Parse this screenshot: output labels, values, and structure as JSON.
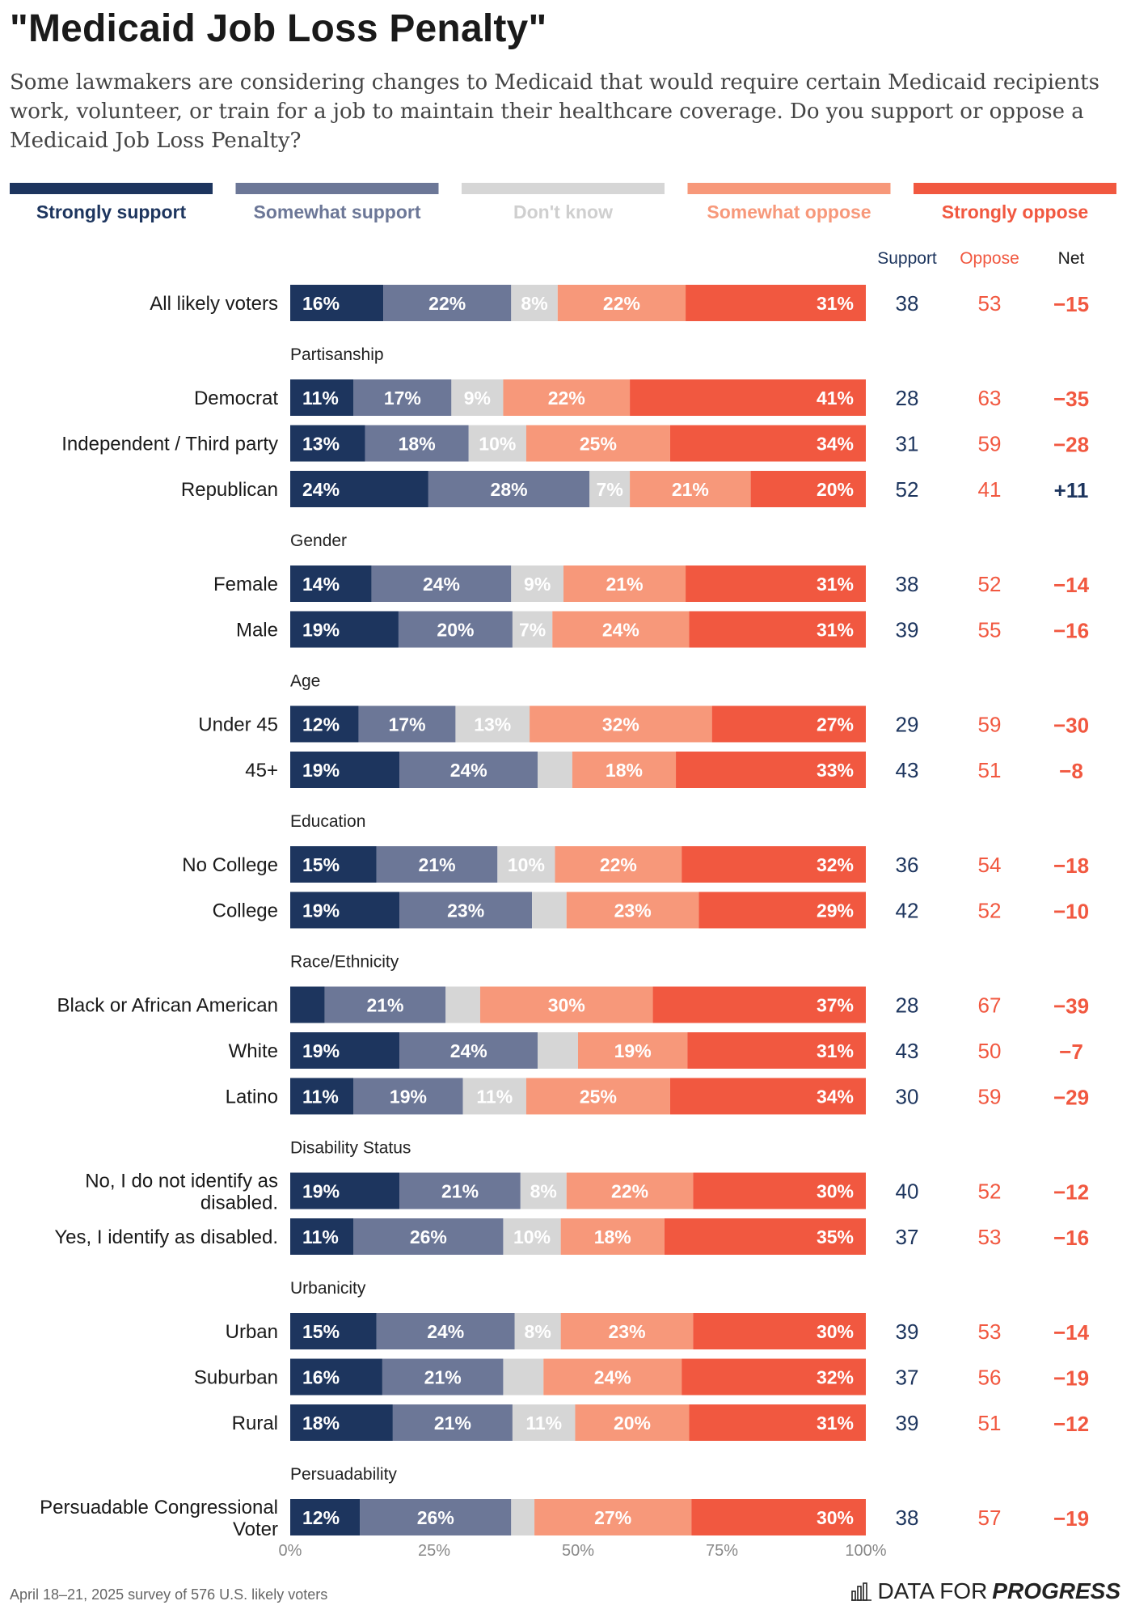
{
  "title": "\"Medicaid Job Loss Penalty\"",
  "subtitle": "Some lawmakers are considering changes to Medicaid that would require certain Medicaid recipients work, volunteer, or train for a job to maintain their healthcare coverage. Do you support or oppose a Medicaid Job Loss Penalty?",
  "footnote": "April 18–21, 2025 survey of 576 U.S. likely voters",
  "brand": {
    "light": "DATA FOR",
    "bold": "PROGRESS",
    "icon": "bar-chart-icon"
  },
  "chart_data": {
    "type": "bar",
    "orientation": "horizontal-stacked",
    "legend_position": "top",
    "legend": [
      {
        "label": "Strongly support",
        "color": "#1d355e",
        "text_color": "#1d355e"
      },
      {
        "label": "Somewhat support",
        "color": "#6c7797",
        "text_color": "#6c7797"
      },
      {
        "label": "Don't know",
        "color": "#d6d6d6",
        "text_color": "#cfcfcf"
      },
      {
        "label": "Somewhat oppose",
        "color": "#f7987a",
        "text_color": "#f7987a"
      },
      {
        "label": "Strongly oppose",
        "color": "#f15840",
        "text_color": "#f15840"
      }
    ],
    "column_headers": {
      "support": "Support",
      "oppose": "Oppose",
      "net": "Net"
    },
    "x_ticks": [
      "0%",
      "25%",
      "50%",
      "75%",
      "100%"
    ],
    "xlim": [
      0,
      100
    ],
    "rows": [
      {
        "kind": "row",
        "label": "All likely voters",
        "values": [
          16,
          22,
          8,
          22,
          31
        ],
        "labels": [
          "16%",
          "22%",
          "8%",
          "22%",
          "31%"
        ],
        "support": "38",
        "oppose": "53",
        "net": "−15"
      },
      {
        "kind": "group",
        "label": "Partisanship"
      },
      {
        "kind": "row",
        "label": "Democrat",
        "values": [
          11,
          17,
          9,
          22,
          41
        ],
        "labels": [
          "11%",
          "17%",
          "9%",
          "22%",
          "41%"
        ],
        "support": "28",
        "oppose": "63",
        "net": "−35"
      },
      {
        "kind": "row",
        "label": "Independent / Third party",
        "values": [
          13,
          18,
          10,
          25,
          34
        ],
        "labels": [
          "13%",
          "18%",
          "10%",
          "25%",
          "34%"
        ],
        "support": "31",
        "oppose": "59",
        "net": "−28"
      },
      {
        "kind": "row",
        "label": "Republican",
        "values": [
          24,
          28,
          7,
          21,
          20
        ],
        "labels": [
          "24%",
          "28%",
          "7%",
          "21%",
          "20%"
        ],
        "support": "52",
        "oppose": "41",
        "net": "+11"
      },
      {
        "kind": "group",
        "label": "Gender"
      },
      {
        "kind": "row",
        "label": "Female",
        "values": [
          14,
          24,
          9,
          21,
          31
        ],
        "labels": [
          "14%",
          "24%",
          "9%",
          "21%",
          "31%"
        ],
        "support": "38",
        "oppose": "52",
        "net": "−14"
      },
      {
        "kind": "row",
        "label": "Male",
        "values": [
          19,
          20,
          7,
          24,
          31
        ],
        "labels": [
          "19%",
          "20%",
          "7%",
          "24%",
          "31%"
        ],
        "support": "39",
        "oppose": "55",
        "net": "−16"
      },
      {
        "kind": "group",
        "label": "Age"
      },
      {
        "kind": "row",
        "label": "Under 45",
        "values": [
          12,
          17,
          13,
          32,
          27
        ],
        "labels": [
          "12%",
          "17%",
          "13%",
          "32%",
          "27%"
        ],
        "support": "29",
        "oppose": "59",
        "net": "−30"
      },
      {
        "kind": "row",
        "label": "45+",
        "values": [
          19,
          24,
          6,
          18,
          33
        ],
        "labels": [
          "19%",
          "24%",
          "",
          "18%",
          "33%"
        ],
        "support": "43",
        "oppose": "51",
        "net": "−8"
      },
      {
        "kind": "group",
        "label": "Education"
      },
      {
        "kind": "row",
        "label": "No College",
        "values": [
          15,
          21,
          10,
          22,
          32
        ],
        "labels": [
          "15%",
          "21%",
          "10%",
          "22%",
          "32%"
        ],
        "support": "36",
        "oppose": "54",
        "net": "−18"
      },
      {
        "kind": "row",
        "label": "College",
        "values": [
          19,
          23,
          6,
          23,
          29
        ],
        "labels": [
          "19%",
          "23%",
          "",
          "23%",
          "29%"
        ],
        "support": "42",
        "oppose": "52",
        "net": "−10"
      },
      {
        "kind": "group",
        "label": "Race/Ethnicity"
      },
      {
        "kind": "row",
        "label": "Black or African American",
        "values": [
          6,
          21,
          6,
          30,
          37
        ],
        "labels": [
          "",
          "21%",
          "",
          "30%",
          "37%"
        ],
        "support": "28",
        "oppose": "67",
        "net": "−39"
      },
      {
        "kind": "row",
        "label": "White",
        "values": [
          19,
          24,
          7,
          19,
          31
        ],
        "labels": [
          "19%",
          "24%",
          "",
          "19%",
          "31%"
        ],
        "support": "43",
        "oppose": "50",
        "net": "−7"
      },
      {
        "kind": "row",
        "label": "Latino",
        "values": [
          11,
          19,
          11,
          25,
          34
        ],
        "labels": [
          "11%",
          "19%",
          "11%",
          "25%",
          "34%"
        ],
        "support": "30",
        "oppose": "59",
        "net": "−29"
      },
      {
        "kind": "group",
        "label": "Disability Status"
      },
      {
        "kind": "row",
        "label": [
          "No, I do not identify as",
          "disabled."
        ],
        "values": [
          19,
          21,
          8,
          22,
          30
        ],
        "labels": [
          "19%",
          "21%",
          "8%",
          "22%",
          "30%"
        ],
        "support": "40",
        "oppose": "52",
        "net": "−12"
      },
      {
        "kind": "row",
        "label": "Yes, I identify as disabled.",
        "values": [
          11,
          26,
          10,
          18,
          35
        ],
        "labels": [
          "11%",
          "26%",
          "10%",
          "18%",
          "35%"
        ],
        "support": "37",
        "oppose": "53",
        "net": "−16"
      },
      {
        "kind": "group",
        "label": "Urbanicity"
      },
      {
        "kind": "row",
        "label": "Urban",
        "values": [
          15,
          24,
          8,
          23,
          30
        ],
        "labels": [
          "15%",
          "24%",
          "8%",
          "23%",
          "30%"
        ],
        "support": "39",
        "oppose": "53",
        "net": "−14"
      },
      {
        "kind": "row",
        "label": "Suburban",
        "values": [
          16,
          21,
          7,
          24,
          32
        ],
        "labels": [
          "16%",
          "21%",
          "",
          "24%",
          "32%"
        ],
        "support": "37",
        "oppose": "56",
        "net": "−19"
      },
      {
        "kind": "row",
        "label": "Rural",
        "values": [
          18,
          21,
          11,
          20,
          31
        ],
        "labels": [
          "18%",
          "21%",
          "11%",
          "20%",
          "31%"
        ],
        "support": "39",
        "oppose": "51",
        "net": "−12"
      },
      {
        "kind": "group",
        "label": "Persuadability"
      },
      {
        "kind": "row",
        "label": [
          "Persuadable Congressional",
          "Voter"
        ],
        "values": [
          12,
          26,
          4,
          27,
          30
        ],
        "labels": [
          "12%",
          "26%",
          "",
          "27%",
          "30%"
        ],
        "support": "38",
        "oppose": "57",
        "net": "−19"
      }
    ]
  }
}
